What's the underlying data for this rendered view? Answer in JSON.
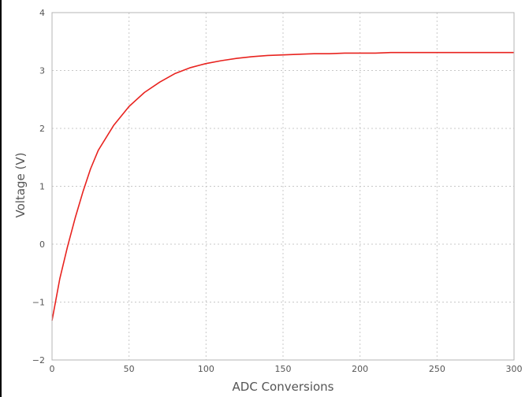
{
  "chart_data": {
    "type": "line",
    "title": "",
    "xlabel": "ADC Conversions",
    "ylabel": "Voltage (V)",
    "xlim": [
      0,
      300
    ],
    "ylim": [
      -2,
      4
    ],
    "x_ticks": [
      0,
      50,
      100,
      150,
      200,
      250,
      300
    ],
    "y_ticks": [
      -2,
      -1,
      0,
      1,
      2,
      3,
      4
    ],
    "x_tick_labels": [
      "0",
      "50",
      "100",
      "150",
      "200",
      "250",
      "300"
    ],
    "y_tick_labels": [
      "−2",
      "−1",
      "0",
      "1",
      "2",
      "3",
      "4"
    ],
    "grid": true,
    "legend": "none",
    "series": [
      {
        "color": "#e8231f",
        "x": [
          0,
          5,
          10,
          15,
          20,
          25,
          30,
          40,
          50,
          60,
          70,
          80,
          90,
          100,
          110,
          120,
          130,
          140,
          150,
          160,
          170,
          180,
          190,
          200,
          210,
          220,
          230,
          240,
          250,
          260,
          270,
          280,
          290,
          300
        ],
        "y": [
          -1.32,
          -0.6,
          -0.05,
          0.45,
          0.9,
          1.3,
          1.62,
          2.05,
          2.38,
          2.62,
          2.8,
          2.95,
          3.05,
          3.12,
          3.17,
          3.21,
          3.24,
          3.26,
          3.27,
          3.28,
          3.29,
          3.29,
          3.3,
          3.3,
          3.3,
          3.31,
          3.31,
          3.31,
          3.31,
          3.31,
          3.31,
          3.31,
          3.31,
          3.31
        ]
      }
    ]
  }
}
